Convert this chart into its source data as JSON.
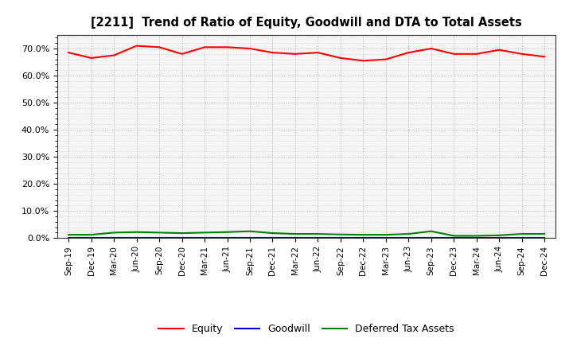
{
  "title": "[2211]  Trend of Ratio of Equity, Goodwill and DTA to Total Assets",
  "x_labels": [
    "Sep-19",
    "Dec-19",
    "Mar-20",
    "Jun-20",
    "Sep-20",
    "Dec-20",
    "Mar-21",
    "Jun-21",
    "Sep-21",
    "Dec-21",
    "Mar-22",
    "Jun-22",
    "Sep-22",
    "Dec-22",
    "Mar-23",
    "Jun-23",
    "Sep-23",
    "Dec-23",
    "Mar-24",
    "Jun-24",
    "Sep-24",
    "Dec-24"
  ],
  "equity": [
    68.5,
    66.5,
    67.5,
    71.0,
    70.5,
    68.0,
    70.5,
    70.5,
    70.0,
    68.5,
    68.0,
    68.5,
    66.5,
    65.5,
    66.0,
    68.5,
    70.0,
    68.0,
    68.0,
    69.5,
    68.0,
    67.0
  ],
  "goodwill": [
    0.0,
    0.0,
    0.0,
    0.0,
    0.0,
    0.0,
    0.0,
    0.0,
    0.0,
    0.0,
    0.0,
    0.0,
    0.0,
    0.0,
    0.0,
    0.0,
    0.0,
    0.0,
    0.0,
    0.0,
    0.0,
    0.0
  ],
  "dta": [
    1.2,
    1.2,
    2.0,
    2.2,
    2.0,
    1.8,
    2.0,
    2.2,
    2.5,
    1.8,
    1.5,
    1.5,
    1.3,
    1.2,
    1.2,
    1.5,
    2.5,
    0.8,
    0.8,
    1.0,
    1.5,
    1.5
  ],
  "equity_color": "#ff0000",
  "goodwill_color": "#0000cc",
  "dta_color": "#008000",
  "ylim": [
    0,
    75
  ],
  "yticks": [
    0,
    10,
    20,
    30,
    40,
    50,
    60,
    70
  ],
  "ytick_labels": [
    "0.0%",
    "10.0%",
    "20.0%",
    "30.0%",
    "40.0%",
    "50.0%",
    "60.0%",
    "70.0%"
  ],
  "background_color": "#ffffff",
  "plot_bg_color": "#f5f5f5",
  "grid_color": "#999999",
  "legend_entries": [
    "Equity",
    "Goodwill",
    "Deferred Tax Assets"
  ]
}
